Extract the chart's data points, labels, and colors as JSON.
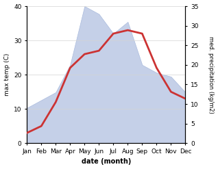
{
  "months": [
    "Jan",
    "Feb",
    "Mar",
    "Apr",
    "May",
    "Jun",
    "Jul",
    "Aug",
    "Sep",
    "Oct",
    "Nov",
    "Dec"
  ],
  "temperature": [
    3,
    5,
    12,
    22,
    26,
    27,
    32,
    33,
    32,
    22,
    15,
    13
  ],
  "precipitation": [
    9,
    11,
    13,
    20,
    35,
    33,
    28,
    31,
    20,
    18,
    17,
    13
  ],
  "temp_color": "#cc3333",
  "precip_fill_color": "#c5d0e8",
  "precip_edge_color": "#aabbdd",
  "temp_ylim": [
    0,
    40
  ],
  "precip_ylim": [
    0,
    35
  ],
  "xlabel": "date (month)",
  "ylabel_left": "max temp (C)",
  "ylabel_right": "med. precipitation (kg/m2)",
  "temp_yticks": [
    0,
    10,
    20,
    30,
    40
  ],
  "precip_yticks": [
    0,
    5,
    10,
    15,
    20,
    25,
    30,
    35
  ],
  "bg_color": "#ffffff",
  "line_width": 2.0
}
